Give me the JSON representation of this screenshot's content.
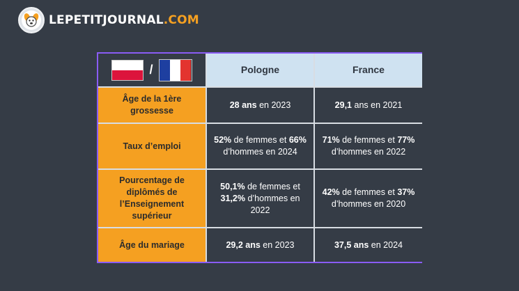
{
  "logo": {
    "name": "LEPETITJOURNAL",
    "suffix": ".COM",
    "icon": "dog-face-icon"
  },
  "table": {
    "header": {
      "separator": "/",
      "flags": [
        "poland-flag-icon",
        "france-flag-icon"
      ],
      "columns": [
        "Pologne",
        "France"
      ]
    },
    "rows": [
      {
        "label": "Âge de la 1ère grossesse",
        "pologne": [
          {
            "b": "28 ans"
          },
          {
            "t": " en 2023"
          }
        ],
        "france": [
          {
            "b": "29,1"
          },
          {
            "t": " ans en 2021"
          }
        ]
      },
      {
        "label": "Taux d’emploi",
        "pologne": [
          {
            "b": "52%"
          },
          {
            "t": " de femmes et "
          },
          {
            "b": "66%"
          },
          {
            "t": " d’hommes en 2024"
          }
        ],
        "france": [
          {
            "b": "71%"
          },
          {
            "t": " de femmes et "
          },
          {
            "b": "77%"
          },
          {
            "t": " d’hommes en 2022"
          }
        ]
      },
      {
        "label": "Pourcentage de diplômés de l’Enseignement supérieur",
        "pologne": [
          {
            "b": "50,1%"
          },
          {
            "t": " de femmes et "
          },
          {
            "b": "31,2%"
          },
          {
            "t": " d’hommes en 2022"
          }
        ],
        "france": [
          {
            "b": "42%"
          },
          {
            "t": " de femmes et "
          },
          {
            "b": "37%"
          },
          {
            "t": " d’hommes en 2020"
          }
        ]
      },
      {
        "label": "Âge du mariage",
        "pologne": [
          {
            "b": "29,2 ans"
          },
          {
            "t": " en 2023"
          }
        ],
        "france": [
          {
            "b": "37,5 ans"
          },
          {
            "t": " en 2024"
          }
        ]
      }
    ]
  },
  "colors": {
    "background": "#353c46",
    "accent_orange": "#f5a021",
    "header_blue": "#cfe2f1",
    "frame_purple": "#8a5cf5"
  }
}
